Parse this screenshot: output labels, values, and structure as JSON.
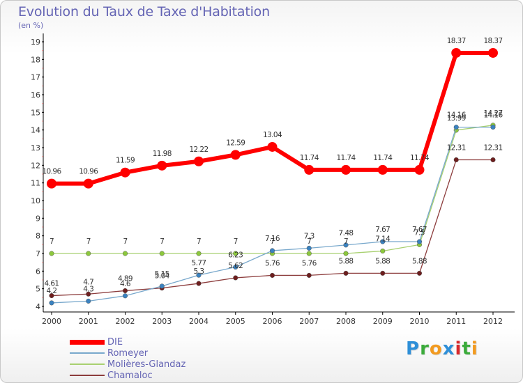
{
  "title": "Evolution du Taux de Taxe d'Habitation",
  "unit": "(en %)",
  "logo": {
    "text": "Proxiti",
    "colors": [
      "#2e8fd8",
      "#3bab3b",
      "#f29a1f",
      "#2e8fd8",
      "#d8282b",
      "#3bab3b",
      "#f29a1f"
    ]
  },
  "chart_data": {
    "type": "line",
    "title": "Evolution du Taux de Taxe d'Habitation",
    "ylabel": "(en %)",
    "xlabel": "",
    "x": [
      "2000",
      "2001",
      "2002",
      "2003",
      "2004",
      "2005",
      "2006",
      "2007",
      "2008",
      "2009",
      "2010",
      "2011",
      "2012"
    ],
    "ylim": [
      4,
      19
    ],
    "yticks": [
      4,
      5,
      6,
      7,
      8,
      9,
      10,
      11,
      12,
      13,
      14,
      15,
      16,
      17,
      18,
      19
    ],
    "grid": false,
    "legend_position": "bottom-left",
    "series": [
      {
        "name": "DIE",
        "color": "#ff0000",
        "marker": "#ff0000",
        "values": [
          10.96,
          10.96,
          11.59,
          11.98,
          12.22,
          12.59,
          13.04,
          11.74,
          11.74,
          11.74,
          11.74,
          18.37,
          18.37
        ],
        "labels": [
          "10.96",
          "10.96",
          "11.59",
          "11.98",
          "12.22",
          "12.59",
          "13.04",
          "11.74",
          "11.74",
          "11.74",
          "11.74",
          "18.37",
          "18.37"
        ]
      },
      {
        "name": "Romeyer",
        "color": "#78a8cc",
        "marker": "#3a82c0",
        "values": [
          4.2,
          4.3,
          4.6,
          5.15,
          5.77,
          6.23,
          7.16,
          7.3,
          7.48,
          7.67,
          7.67,
          14.16,
          14.16
        ],
        "labels": [
          "4.2",
          "4.3",
          "4.6",
          "5.15",
          "5.77",
          "6.23",
          "7.16",
          "7.3",
          "7.48",
          "7.67",
          "7.67",
          "14.16",
          "14.16"
        ]
      },
      {
        "name": "Molières-Glandaz",
        "color": "#a8d070",
        "marker": "#8cc83c",
        "values": [
          7,
          7,
          7,
          7,
          7,
          7,
          7,
          7,
          7,
          7.14,
          7.5,
          13.99,
          14.27
        ],
        "labels": [
          "7",
          "7",
          "7",
          "7",
          "7",
          "7",
          "7",
          "7",
          "7",
          "7.14",
          "7.5",
          "13.99",
          "14.27"
        ]
      },
      {
        "name": "Chamaloc",
        "color": "#8c3c3c",
        "marker": "#6e1e1e",
        "values": [
          4.61,
          4.7,
          4.89,
          5.04,
          5.3,
          5.62,
          5.76,
          5.76,
          5.88,
          5.88,
          5.88,
          12.31,
          12.31
        ],
        "labels": [
          "4.61",
          "4.7",
          "4.89",
          "5.04",
          "5.3",
          "5.62",
          "5.76",
          "5.76",
          "5.88",
          "5.88",
          "5.88",
          "12.31",
          "12.31"
        ]
      }
    ]
  }
}
